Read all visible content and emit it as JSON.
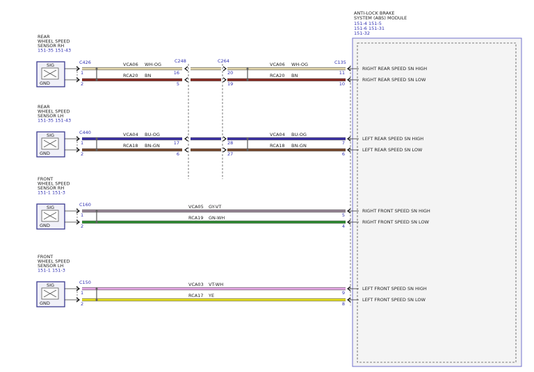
{
  "module": {
    "title_lines": [
      "ANTI-LOCK BRAKE",
      "SYSTEM (ABS) MODULE"
    ],
    "ref_lines": [
      "151-4  151-5",
      "151-6    151-31",
      "151-32"
    ]
  },
  "sensor_pin_labels": {
    "sig": "SIG",
    "gnd": "GND"
  },
  "rows": [
    {
      "sensor_lines": [
        "REAR",
        "WHEEL SPEED",
        "SENSOR RH"
      ],
      "sensor_refs": "151-35  151-43",
      "connectors": [
        "C426",
        "C248",
        "C264",
        "C135"
      ],
      "segmented": true,
      "wires": [
        {
          "circuit": "VCA06",
          "color_code": "WH-OG",
          "color": "#e4d7ad",
          "pins": [
            "1",
            "16",
            "20",
            "11"
          ],
          "module_label": "RIGHT REAR SPEED SN HIGH"
        },
        {
          "circuit": "RCA20",
          "color_code": "BN",
          "color": "#8c2a22",
          "pins": [
            "2",
            "5",
            "19",
            "10"
          ],
          "module_label": "RIGHT REAR SPEED SN LOW"
        }
      ]
    },
    {
      "sensor_lines": [
        "REAR",
        "WHEEL SPEED",
        "SENSOR LH"
      ],
      "sensor_refs": "151-35  151-43",
      "connectors": [
        "C440",
        "",
        "",
        ""
      ],
      "segmented": true,
      "wires": [
        {
          "circuit": "VCA04",
          "color_code": "BU-OG",
          "color": "#3b30a8",
          "pins": [
            "1",
            "17",
            "28",
            "7"
          ],
          "module_label": "LEFT REAR SPEED SN HIGH"
        },
        {
          "circuit": "RCA18",
          "color_code": "BN-GN",
          "color": "#7a4a2e",
          "pins": [
            "2",
            "6",
            "27",
            "6"
          ],
          "module_label": "LEFT REAR SPEED SN LOW"
        }
      ]
    },
    {
      "sensor_lines": [
        "FRONT",
        "WHEEL SPEED",
        "SENSOR RH"
      ],
      "sensor_refs": "151-1  151-3",
      "connectors": [
        "C160",
        "",
        "",
        ""
      ],
      "segmented": false,
      "wires": [
        {
          "circuit": "VCA05",
          "color_code": "GY-VT",
          "color": "#998797",
          "pins": [
            "1",
            "",
            "",
            "5"
          ],
          "module_label": "RIGHT FRONT SPEED SN HIGH"
        },
        {
          "circuit": "RCA19",
          "color_code": "GN-WH",
          "color": "#2e8e32",
          "pins": [
            "2",
            "",
            "",
            "4"
          ],
          "module_label": "RIGHT FRONT SPEED SN LOW"
        }
      ]
    },
    {
      "sensor_lines": [
        "FRONT",
        "WHEEL SPEED",
        "SENSOR LH"
      ],
      "sensor_refs": "151-1  151-3",
      "connectors": [
        "C150",
        "",
        "",
        ""
      ],
      "segmented": false,
      "wires": [
        {
          "circuit": "VCA03",
          "color_code": "VT-WH",
          "color": "#e7a8e6",
          "pins": [
            "1",
            "",
            "",
            "9"
          ],
          "module_label": "LEFT FRONT SPEED SN HIGH"
        },
        {
          "circuit": "RCA17",
          "color_code": "YE",
          "color": "#e9e21e",
          "pins": [
            "2",
            "",
            "",
            "8"
          ],
          "module_label": "LEFT FRONT SPEED SN LOW"
        }
      ]
    }
  ]
}
